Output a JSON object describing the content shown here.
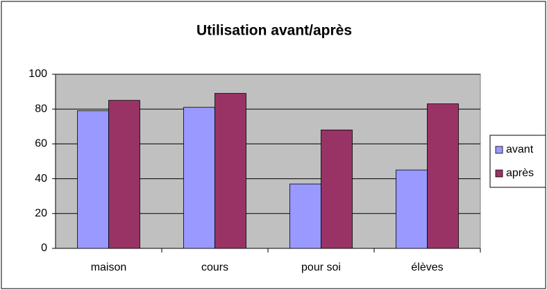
{
  "chart_data": {
    "type": "bar",
    "title": "Utilisation avant/après",
    "categories": [
      "maison",
      "cours",
      "pour soi",
      "élèves"
    ],
    "series": [
      {
        "name": "avant",
        "color": "#9999ff",
        "values": [
          79,
          81,
          37,
          45
        ]
      },
      {
        "name": "après",
        "color": "#993366",
        "values": [
          85,
          89,
          68,
          83
        ]
      }
    ],
    "ylim": [
      0,
      100
    ],
    "yticks": [
      0,
      20,
      40,
      60,
      80,
      100
    ],
    "grid": true,
    "legend": "right"
  }
}
